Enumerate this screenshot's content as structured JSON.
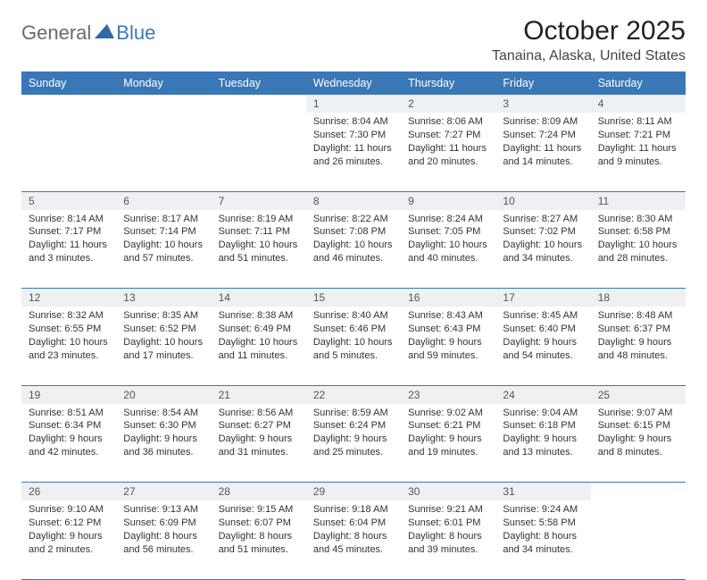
{
  "logo": {
    "part1": "General",
    "part2": "Blue"
  },
  "title": "October 2025",
  "location": "Tanaina, Alaska, United States",
  "colors": {
    "header_bg": "#3a77b7",
    "header_text": "#ffffff",
    "daynum_bg": "#eef0f1",
    "row_border": "#3a77b7",
    "logo_gray": "#6a6a6a",
    "logo_blue": "#3c78b4"
  },
  "day_headers": [
    "Sunday",
    "Monday",
    "Tuesday",
    "Wednesday",
    "Thursday",
    "Friday",
    "Saturday"
  ],
  "weeks": [
    {
      "nums": [
        "",
        "",
        "",
        "1",
        "2",
        "3",
        "4"
      ],
      "cells": [
        null,
        null,
        null,
        {
          "sunrise": "Sunrise: 8:04 AM",
          "sunset": "Sunset: 7:30 PM",
          "daylight1": "Daylight: 11 hours",
          "daylight2": "and 26 minutes."
        },
        {
          "sunrise": "Sunrise: 8:06 AM",
          "sunset": "Sunset: 7:27 PM",
          "daylight1": "Daylight: 11 hours",
          "daylight2": "and 20 minutes."
        },
        {
          "sunrise": "Sunrise: 8:09 AM",
          "sunset": "Sunset: 7:24 PM",
          "daylight1": "Daylight: 11 hours",
          "daylight2": "and 14 minutes."
        },
        {
          "sunrise": "Sunrise: 8:11 AM",
          "sunset": "Sunset: 7:21 PM",
          "daylight1": "Daylight: 11 hours",
          "daylight2": "and 9 minutes."
        }
      ]
    },
    {
      "nums": [
        "5",
        "6",
        "7",
        "8",
        "9",
        "10",
        "11"
      ],
      "cells": [
        {
          "sunrise": "Sunrise: 8:14 AM",
          "sunset": "Sunset: 7:17 PM",
          "daylight1": "Daylight: 11 hours",
          "daylight2": "and 3 minutes."
        },
        {
          "sunrise": "Sunrise: 8:17 AM",
          "sunset": "Sunset: 7:14 PM",
          "daylight1": "Daylight: 10 hours",
          "daylight2": "and 57 minutes."
        },
        {
          "sunrise": "Sunrise: 8:19 AM",
          "sunset": "Sunset: 7:11 PM",
          "daylight1": "Daylight: 10 hours",
          "daylight2": "and 51 minutes."
        },
        {
          "sunrise": "Sunrise: 8:22 AM",
          "sunset": "Sunset: 7:08 PM",
          "daylight1": "Daylight: 10 hours",
          "daylight2": "and 46 minutes."
        },
        {
          "sunrise": "Sunrise: 8:24 AM",
          "sunset": "Sunset: 7:05 PM",
          "daylight1": "Daylight: 10 hours",
          "daylight2": "and 40 minutes."
        },
        {
          "sunrise": "Sunrise: 8:27 AM",
          "sunset": "Sunset: 7:02 PM",
          "daylight1": "Daylight: 10 hours",
          "daylight2": "and 34 minutes."
        },
        {
          "sunrise": "Sunrise: 8:30 AM",
          "sunset": "Sunset: 6:58 PM",
          "daylight1": "Daylight: 10 hours",
          "daylight2": "and 28 minutes."
        }
      ]
    },
    {
      "nums": [
        "12",
        "13",
        "14",
        "15",
        "16",
        "17",
        "18"
      ],
      "cells": [
        {
          "sunrise": "Sunrise: 8:32 AM",
          "sunset": "Sunset: 6:55 PM",
          "daylight1": "Daylight: 10 hours",
          "daylight2": "and 23 minutes."
        },
        {
          "sunrise": "Sunrise: 8:35 AM",
          "sunset": "Sunset: 6:52 PM",
          "daylight1": "Daylight: 10 hours",
          "daylight2": "and 17 minutes."
        },
        {
          "sunrise": "Sunrise: 8:38 AM",
          "sunset": "Sunset: 6:49 PM",
          "daylight1": "Daylight: 10 hours",
          "daylight2": "and 11 minutes."
        },
        {
          "sunrise": "Sunrise: 8:40 AM",
          "sunset": "Sunset: 6:46 PM",
          "daylight1": "Daylight: 10 hours",
          "daylight2": "and 5 minutes."
        },
        {
          "sunrise": "Sunrise: 8:43 AM",
          "sunset": "Sunset: 6:43 PM",
          "daylight1": "Daylight: 9 hours",
          "daylight2": "and 59 minutes."
        },
        {
          "sunrise": "Sunrise: 8:45 AM",
          "sunset": "Sunset: 6:40 PM",
          "daylight1": "Daylight: 9 hours",
          "daylight2": "and 54 minutes."
        },
        {
          "sunrise": "Sunrise: 8:48 AM",
          "sunset": "Sunset: 6:37 PM",
          "daylight1": "Daylight: 9 hours",
          "daylight2": "and 48 minutes."
        }
      ]
    },
    {
      "nums": [
        "19",
        "20",
        "21",
        "22",
        "23",
        "24",
        "25"
      ],
      "cells": [
        {
          "sunrise": "Sunrise: 8:51 AM",
          "sunset": "Sunset: 6:34 PM",
          "daylight1": "Daylight: 9 hours",
          "daylight2": "and 42 minutes."
        },
        {
          "sunrise": "Sunrise: 8:54 AM",
          "sunset": "Sunset: 6:30 PM",
          "daylight1": "Daylight: 9 hours",
          "daylight2": "and 36 minutes."
        },
        {
          "sunrise": "Sunrise: 8:56 AM",
          "sunset": "Sunset: 6:27 PM",
          "daylight1": "Daylight: 9 hours",
          "daylight2": "and 31 minutes."
        },
        {
          "sunrise": "Sunrise: 8:59 AM",
          "sunset": "Sunset: 6:24 PM",
          "daylight1": "Daylight: 9 hours",
          "daylight2": "and 25 minutes."
        },
        {
          "sunrise": "Sunrise: 9:02 AM",
          "sunset": "Sunset: 6:21 PM",
          "daylight1": "Daylight: 9 hours",
          "daylight2": "and 19 minutes."
        },
        {
          "sunrise": "Sunrise: 9:04 AM",
          "sunset": "Sunset: 6:18 PM",
          "daylight1": "Daylight: 9 hours",
          "daylight2": "and 13 minutes."
        },
        {
          "sunrise": "Sunrise: 9:07 AM",
          "sunset": "Sunset: 6:15 PM",
          "daylight1": "Daylight: 9 hours",
          "daylight2": "and 8 minutes."
        }
      ]
    },
    {
      "nums": [
        "26",
        "27",
        "28",
        "29",
        "30",
        "31",
        ""
      ],
      "cells": [
        {
          "sunrise": "Sunrise: 9:10 AM",
          "sunset": "Sunset: 6:12 PM",
          "daylight1": "Daylight: 9 hours",
          "daylight2": "and 2 minutes."
        },
        {
          "sunrise": "Sunrise: 9:13 AM",
          "sunset": "Sunset: 6:09 PM",
          "daylight1": "Daylight: 8 hours",
          "daylight2": "and 56 minutes."
        },
        {
          "sunrise": "Sunrise: 9:15 AM",
          "sunset": "Sunset: 6:07 PM",
          "daylight1": "Daylight: 8 hours",
          "daylight2": "and 51 minutes."
        },
        {
          "sunrise": "Sunrise: 9:18 AM",
          "sunset": "Sunset: 6:04 PM",
          "daylight1": "Daylight: 8 hours",
          "daylight2": "and 45 minutes."
        },
        {
          "sunrise": "Sunrise: 9:21 AM",
          "sunset": "Sunset: 6:01 PM",
          "daylight1": "Daylight: 8 hours",
          "daylight2": "and 39 minutes."
        },
        {
          "sunrise": "Sunrise: 9:24 AM",
          "sunset": "Sunset: 5:58 PM",
          "daylight1": "Daylight: 8 hours",
          "daylight2": "and 34 minutes."
        },
        null
      ]
    }
  ]
}
